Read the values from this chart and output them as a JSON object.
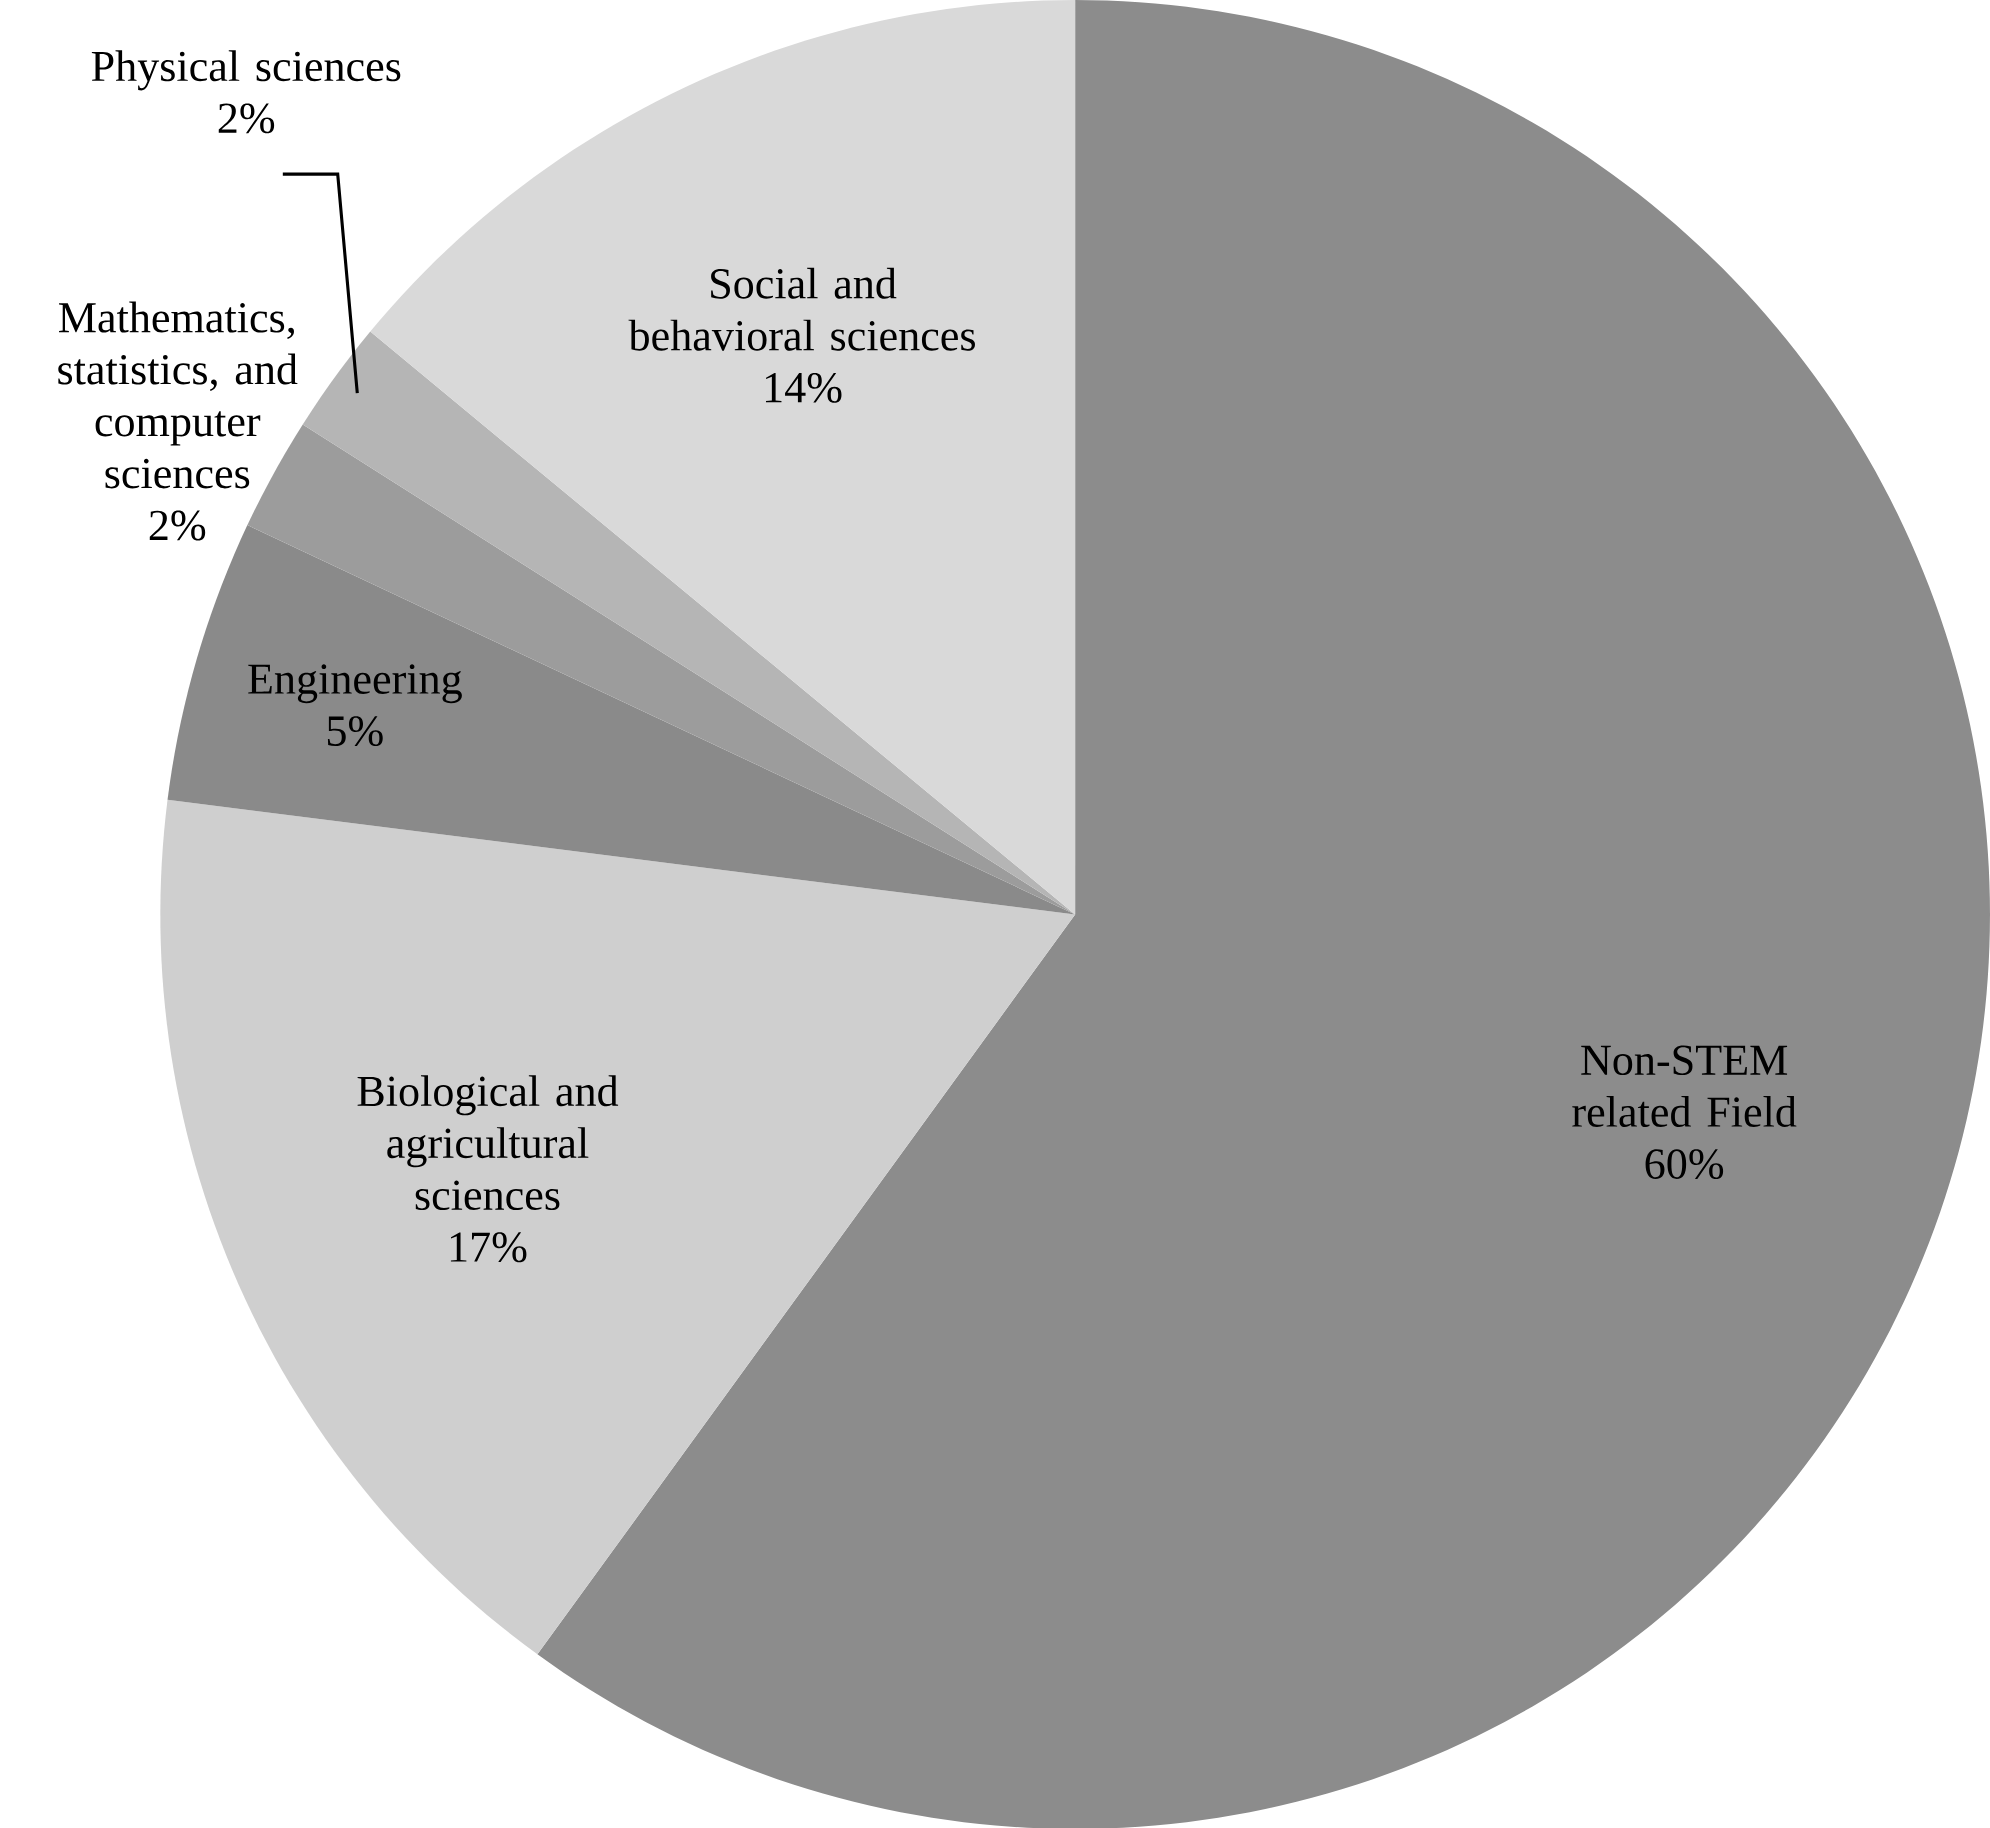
{
  "chart_data": {
    "type": "pie",
    "categories": [
      "Non-STEM related Field",
      "Biological and agricultural sciences",
      "Engineering",
      "Mathematics, statistics, and computer sciences",
      "Physical sciences",
      "Social and behavioral sciences"
    ],
    "values": [
      60,
      17,
      5,
      2,
      2,
      14
    ],
    "value_labels": [
      "60%",
      "17%",
      "5%",
      "2%",
      "2%",
      "14%"
    ],
    "colors": [
      "#8c8c8c",
      "#cfcfcf",
      "#8a8a8a",
      "#9c9c9c",
      "#b5b5b5",
      "#d9d9d9"
    ]
  }
}
